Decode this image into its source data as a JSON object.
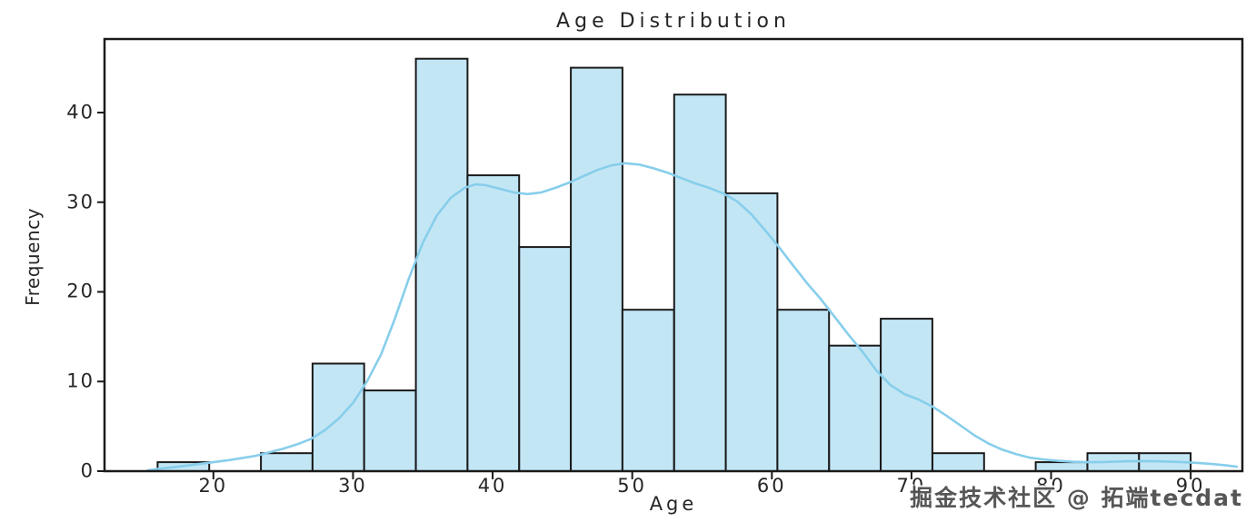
{
  "figure_title": "Age Distribution",
  "watermark": {
    "text": "掘金技术社区 @ 拓端tecdat"
  },
  "chart_data": {
    "type": "bar",
    "subtype": "histogram_with_kde",
    "title": "Age Distribution",
    "xlabel": "Age",
    "ylabel": "Frequency",
    "grid": false,
    "legend_position": "none",
    "xlim": [
      12.2,
      93.7
    ],
    "ylim": [
      0,
      48.2
    ],
    "x_ticks": [
      20,
      30,
      40,
      50,
      60,
      70,
      80,
      90
    ],
    "y_ticks": [
      0,
      10,
      20,
      30,
      40
    ],
    "bins": {
      "start": 16,
      "width": 3.7,
      "counts": [
        1,
        0,
        2,
        12,
        9,
        46,
        33,
        25,
        45,
        18,
        42,
        31,
        18,
        14,
        17,
        2,
        0,
        1,
        2,
        2
      ]
    },
    "kde_points": [
      [
        15.3,
        0.1
      ],
      [
        16,
        0.25
      ],
      [
        17,
        0.42
      ],
      [
        18,
        0.6
      ],
      [
        19,
        0.8
      ],
      [
        20,
        1.0
      ],
      [
        21,
        1.2
      ],
      [
        22,
        1.45
      ],
      [
        23,
        1.7
      ],
      [
        24,
        2.1
      ],
      [
        25,
        2.5
      ],
      [
        26,
        3.0
      ],
      [
        27,
        3.6
      ],
      [
        28,
        4.6
      ],
      [
        29,
        5.9
      ],
      [
        30,
        7.6
      ],
      [
        31,
        10.0
      ],
      [
        32,
        13.0
      ],
      [
        33,
        17.0
      ],
      [
        34,
        21.5
      ],
      [
        35,
        25.5
      ],
      [
        36,
        28.5
      ],
      [
        37,
        30.5
      ],
      [
        38,
        31.6
      ],
      [
        38.8,
        32.0
      ],
      [
        39.5,
        31.9
      ],
      [
        40.5,
        31.5
      ],
      [
        41.5,
        31.1
      ],
      [
        42.5,
        30.9
      ],
      [
        43.5,
        31.1
      ],
      [
        44.5,
        31.6
      ],
      [
        45.5,
        32.2
      ],
      [
        46.5,
        32.9
      ],
      [
        47.5,
        33.6
      ],
      [
        48.5,
        34.1
      ],
      [
        49.5,
        34.35
      ],
      [
        50.5,
        34.2
      ],
      [
        51.5,
        33.8
      ],
      [
        52.5,
        33.3
      ],
      [
        53.5,
        32.7
      ],
      [
        54.5,
        32.1
      ],
      [
        55.5,
        31.6
      ],
      [
        56.5,
        31.0
      ],
      [
        57.5,
        30.1
      ],
      [
        58.5,
        28.7
      ],
      [
        59.5,
        26.9
      ],
      [
        60.5,
        25.0
      ],
      [
        61.5,
        23.0
      ],
      [
        62.5,
        21.0
      ],
      [
        63.5,
        19.2
      ],
      [
        64.5,
        17.2
      ],
      [
        65.5,
        15.2
      ],
      [
        66.5,
        13.3
      ],
      [
        67.5,
        11.2
      ],
      [
        68.5,
        9.6
      ],
      [
        69.5,
        8.6
      ],
      [
        70.5,
        8.0
      ],
      [
        71.5,
        7.2
      ],
      [
        72.5,
        6.2
      ],
      [
        73.5,
        5.1
      ],
      [
        74.5,
        4.0
      ],
      [
        75.5,
        3.1
      ],
      [
        76.5,
        2.4
      ],
      [
        77.5,
        1.9
      ],
      [
        78.5,
        1.5
      ],
      [
        79.5,
        1.3
      ],
      [
        80.5,
        1.15
      ],
      [
        81.5,
        1.05
      ],
      [
        82.5,
        1.0
      ],
      [
        83.5,
        1.0
      ],
      [
        84.5,
        1.05
      ],
      [
        85.5,
        1.1
      ],
      [
        86.5,
        1.12
      ],
      [
        87.5,
        1.1
      ],
      [
        88.5,
        1.05
      ],
      [
        89.5,
        1.0
      ],
      [
        90.5,
        0.92
      ],
      [
        91.5,
        0.8
      ],
      [
        92.5,
        0.65
      ],
      [
        93.3,
        0.5
      ]
    ],
    "colors": {
      "bar_fill": "#C3E6F5",
      "bar_edge": "#1a1a1a",
      "kde_line": "#87CEEB",
      "spine": "#1a1a1a",
      "text": "#262626"
    }
  }
}
